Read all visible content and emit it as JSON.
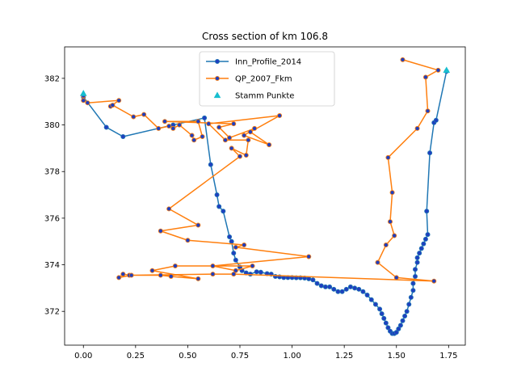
{
  "chart_data": {
    "type": "line",
    "title": "Cross section of km 106.8",
    "xlabel": "",
    "ylabel": "",
    "xlim": [
      -0.09,
      1.83
    ],
    "ylim": [
      370.55,
      383.35
    ],
    "xticks": [
      0.0,
      0.25,
      0.5,
      0.75,
      1.0,
      1.25,
      1.5,
      1.75
    ],
    "xtick_labels": [
      "0.00",
      "0.25",
      "0.50",
      "0.75",
      "1.00",
      "1.25",
      "1.50",
      "1.75"
    ],
    "yticks": [
      372,
      374,
      376,
      378,
      380,
      382
    ],
    "ytick_labels": [
      "372",
      "374",
      "376",
      "378",
      "380",
      "382"
    ],
    "grid": false,
    "legend_position": "top-center",
    "series": [
      {
        "name": "Inn_Profile_2014",
        "kind": "line-marker",
        "color": "#1f77b4",
        "marker_face": "#1f3fbf",
        "points": [
          [
            0.0,
            381.2
          ],
          [
            0.11,
            379.9
          ],
          [
            0.19,
            379.5
          ],
          [
            0.43,
            380.0
          ],
          [
            0.58,
            380.3
          ],
          [
            0.61,
            378.3
          ],
          [
            0.64,
            377.0
          ],
          [
            0.65,
            376.5
          ],
          [
            0.67,
            376.3
          ],
          [
            0.7,
            375.2
          ],
          [
            0.71,
            375.0
          ],
          [
            0.72,
            374.5
          ],
          [
            0.73,
            374.2
          ],
          [
            0.75,
            373.9
          ],
          [
            0.76,
            373.75
          ],
          [
            0.78,
            373.65
          ],
          [
            0.8,
            373.6
          ],
          [
            0.83,
            373.7
          ],
          [
            0.85,
            373.68
          ],
          [
            0.88,
            373.62
          ],
          [
            0.9,
            373.6
          ],
          [
            0.92,
            373.5
          ],
          [
            0.94,
            373.48
          ],
          [
            0.96,
            373.45
          ],
          [
            0.98,
            373.45
          ],
          [
            1.0,
            373.45
          ],
          [
            1.02,
            373.44
          ],
          [
            1.04,
            373.44
          ],
          [
            1.06,
            373.43
          ],
          [
            1.08,
            373.4
          ],
          [
            1.1,
            373.35
          ],
          [
            1.12,
            373.2
          ],
          [
            1.14,
            373.1
          ],
          [
            1.16,
            373.05
          ],
          [
            1.18,
            373.05
          ],
          [
            1.2,
            372.95
          ],
          [
            1.22,
            372.85
          ],
          [
            1.24,
            372.85
          ],
          [
            1.26,
            372.95
          ],
          [
            1.28,
            373.05
          ],
          [
            1.3,
            373.0
          ],
          [
            1.32,
            372.95
          ],
          [
            1.34,
            372.85
          ],
          [
            1.36,
            372.7
          ],
          [
            1.38,
            372.5
          ],
          [
            1.4,
            372.3
          ],
          [
            1.42,
            372.1
          ],
          [
            1.43,
            371.9
          ],
          [
            1.44,
            371.7
          ],
          [
            1.45,
            371.5
          ],
          [
            1.46,
            371.3
          ],
          [
            1.47,
            371.15
          ],
          [
            1.48,
            371.05
          ],
          [
            1.49,
            371.05
          ],
          [
            1.5,
            371.1
          ],
          [
            1.51,
            371.25
          ],
          [
            1.52,
            371.4
          ],
          [
            1.53,
            371.6
          ],
          [
            1.54,
            371.8
          ],
          [
            1.55,
            372.0
          ],
          [
            1.56,
            372.3
          ],
          [
            1.57,
            372.6
          ],
          [
            1.58,
            372.9
          ],
          [
            1.58,
            373.2
          ],
          [
            1.59,
            373.5
          ],
          [
            1.59,
            373.8
          ],
          [
            1.6,
            374.1
          ],
          [
            1.6,
            374.3
          ],
          [
            1.61,
            374.5
          ],
          [
            1.62,
            374.7
          ],
          [
            1.63,
            374.9
          ],
          [
            1.64,
            375.1
          ],
          [
            1.65,
            375.3
          ],
          [
            1.645,
            376.3
          ],
          [
            1.66,
            378.8
          ],
          [
            1.68,
            380.1
          ],
          [
            1.69,
            380.2
          ],
          [
            1.74,
            382.3
          ]
        ]
      },
      {
        "name": "QP_2007_Fkm",
        "kind": "line-marker",
        "color": "#ff7f0e",
        "marker_face": "#1f3fbf",
        "points": [
          [
            0.0,
            381.25
          ],
          [
            0.0,
            381.05
          ],
          [
            0.02,
            380.95
          ],
          [
            0.17,
            381.05
          ],
          [
            0.13,
            380.8
          ],
          [
            0.14,
            380.85
          ],
          [
            0.24,
            380.35
          ],
          [
            0.29,
            380.45
          ],
          [
            0.36,
            379.85
          ],
          [
            0.41,
            379.95
          ],
          [
            0.43,
            379.85
          ],
          [
            0.46,
            380.0
          ],
          [
            0.52,
            379.55
          ],
          [
            0.53,
            379.35
          ],
          [
            0.57,
            379.5
          ],
          [
            0.55,
            380.15
          ],
          [
            0.39,
            380.15
          ],
          [
            0.72,
            380.05
          ],
          [
            0.65,
            379.9
          ],
          [
            0.7,
            379.45
          ],
          [
            0.82,
            379.85
          ],
          [
            0.77,
            379.55
          ],
          [
            0.89,
            379.15
          ],
          [
            0.8,
            379.7
          ],
          [
            0.94,
            380.4
          ],
          [
            0.6,
            380.05
          ],
          [
            0.68,
            379.35
          ],
          [
            0.79,
            379.35
          ],
          [
            0.78,
            378.7
          ],
          [
            0.71,
            379.0
          ],
          [
            0.75,
            378.65
          ],
          [
            0.41,
            376.4
          ],
          [
            0.55,
            375.7
          ],
          [
            0.37,
            375.45
          ],
          [
            0.5,
            375.05
          ],
          [
            0.77,
            374.85
          ],
          [
            0.73,
            374.75
          ],
          [
            1.08,
            374.35
          ],
          [
            0.62,
            373.95
          ],
          [
            0.73,
            373.75
          ],
          [
            0.81,
            373.95
          ],
          [
            0.44,
            373.95
          ],
          [
            0.33,
            373.75
          ],
          [
            0.55,
            373.4
          ],
          [
            0.42,
            373.5
          ],
          [
            0.37,
            373.55
          ],
          [
            0.22,
            373.55
          ],
          [
            0.19,
            373.6
          ],
          [
            0.17,
            373.45
          ],
          [
            0.23,
            373.55
          ],
          [
            0.62,
            373.6
          ],
          [
            0.72,
            373.6
          ],
          [
            1.68,
            373.3
          ],
          [
            1.5,
            373.45
          ],
          [
            1.41,
            374.1
          ],
          [
            1.45,
            374.85
          ],
          [
            1.49,
            375.25
          ],
          [
            1.47,
            375.85
          ],
          [
            1.48,
            377.1
          ],
          [
            1.46,
            378.6
          ],
          [
            1.6,
            379.85
          ],
          [
            1.65,
            380.6
          ],
          [
            1.64,
            382.05
          ],
          [
            1.7,
            382.35
          ],
          [
            1.53,
            382.8
          ]
        ]
      },
      {
        "name": "Stamm Punkte",
        "kind": "scatter-triangle",
        "color": "#17becf",
        "points": [
          [
            0.0,
            381.35
          ],
          [
            1.74,
            382.35
          ]
        ]
      }
    ]
  }
}
